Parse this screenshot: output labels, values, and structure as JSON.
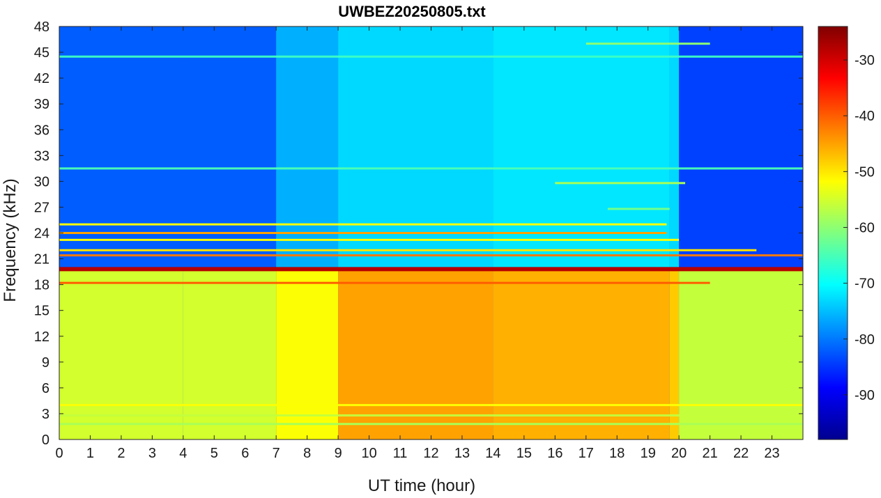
{
  "chart_data": {
    "type": "heatmap",
    "title": "UWBEZ20250805.txt",
    "xlabel": "UT time (hour)",
    "ylabel": "Frequency (kHz)",
    "xlim": [
      0,
      24
    ],
    "ylim": [
      0,
      48
    ],
    "x_ticks": [
      0,
      1,
      2,
      3,
      4,
      5,
      6,
      7,
      8,
      9,
      10,
      11,
      12,
      13,
      14,
      15,
      16,
      17,
      18,
      19,
      20,
      21,
      22,
      23
    ],
    "y_ticks": [
      0,
      3,
      6,
      9,
      12,
      15,
      18,
      21,
      24,
      27,
      30,
      33,
      36,
      39,
      42,
      45,
      48
    ],
    "colorbar": {
      "colormap": "jet",
      "clim": [
        -98,
        -24
      ],
      "ticks": [
        -90,
        -80,
        -70,
        -60,
        -50,
        -40,
        -30
      ]
    },
    "background_level_by_hour": [
      {
        "hour": 0,
        "low_band_db": -55,
        "high_band_db": -82
      },
      {
        "hour": 4,
        "low_band_db": -55,
        "high_band_db": -82
      },
      {
        "hour": 7,
        "low_band_db": -52,
        "high_band_db": -76
      },
      {
        "hour": 9,
        "low_band_db": -45,
        "high_band_db": -73
      },
      {
        "hour": 14,
        "low_band_db": -46,
        "high_band_db": -72
      },
      {
        "hour": 19.7,
        "low_band_db": -48,
        "high_band_db": -73
      },
      {
        "hour": 20,
        "low_band_db": -56,
        "high_band_db": -84
      },
      {
        "hour": 24,
        "low_band_db": -56,
        "high_band_db": -84
      }
    ],
    "narrowband_lines": [
      {
        "freq_khz": 19.8,
        "level_db": -28,
        "t_start": 0,
        "t_end": 24
      },
      {
        "freq_khz": 18.2,
        "level_db": -40,
        "t_start": 0,
        "t_end": 21
      },
      {
        "freq_khz": 21.4,
        "level_db": -42,
        "t_start": 0,
        "t_end": 24
      },
      {
        "freq_khz": 24.0,
        "level_db": -45,
        "t_start": 0,
        "t_end": 19.6
      },
      {
        "freq_khz": 22.0,
        "level_db": -50,
        "t_start": 0,
        "t_end": 22.5
      },
      {
        "freq_khz": 23.2,
        "level_db": -52,
        "t_start": 0,
        "t_end": 20
      },
      {
        "freq_khz": 25.0,
        "level_db": -52,
        "t_start": 0,
        "t_end": 19.6
      },
      {
        "freq_khz": 4.0,
        "level_db": -52,
        "t_start": 0,
        "t_end": 24
      },
      {
        "freq_khz": 2.8,
        "level_db": -56,
        "t_start": 0,
        "t_end": 24
      },
      {
        "freq_khz": 1.8,
        "level_db": -58,
        "t_start": 0,
        "t_end": 24
      },
      {
        "freq_khz": 31.5,
        "level_db": -65,
        "t_start": 0,
        "t_end": 24
      },
      {
        "freq_khz": 44.5,
        "level_db": -66,
        "t_start": 0,
        "t_end": 24
      },
      {
        "freq_khz": 46.0,
        "level_db": -60,
        "t_start": 17,
        "t_end": 21
      },
      {
        "freq_khz": 29.8,
        "level_db": -58,
        "t_start": 16,
        "t_end": 20.2
      },
      {
        "freq_khz": 26.8,
        "level_db": -62,
        "t_start": 17.7,
        "t_end": 19.7
      }
    ]
  }
}
